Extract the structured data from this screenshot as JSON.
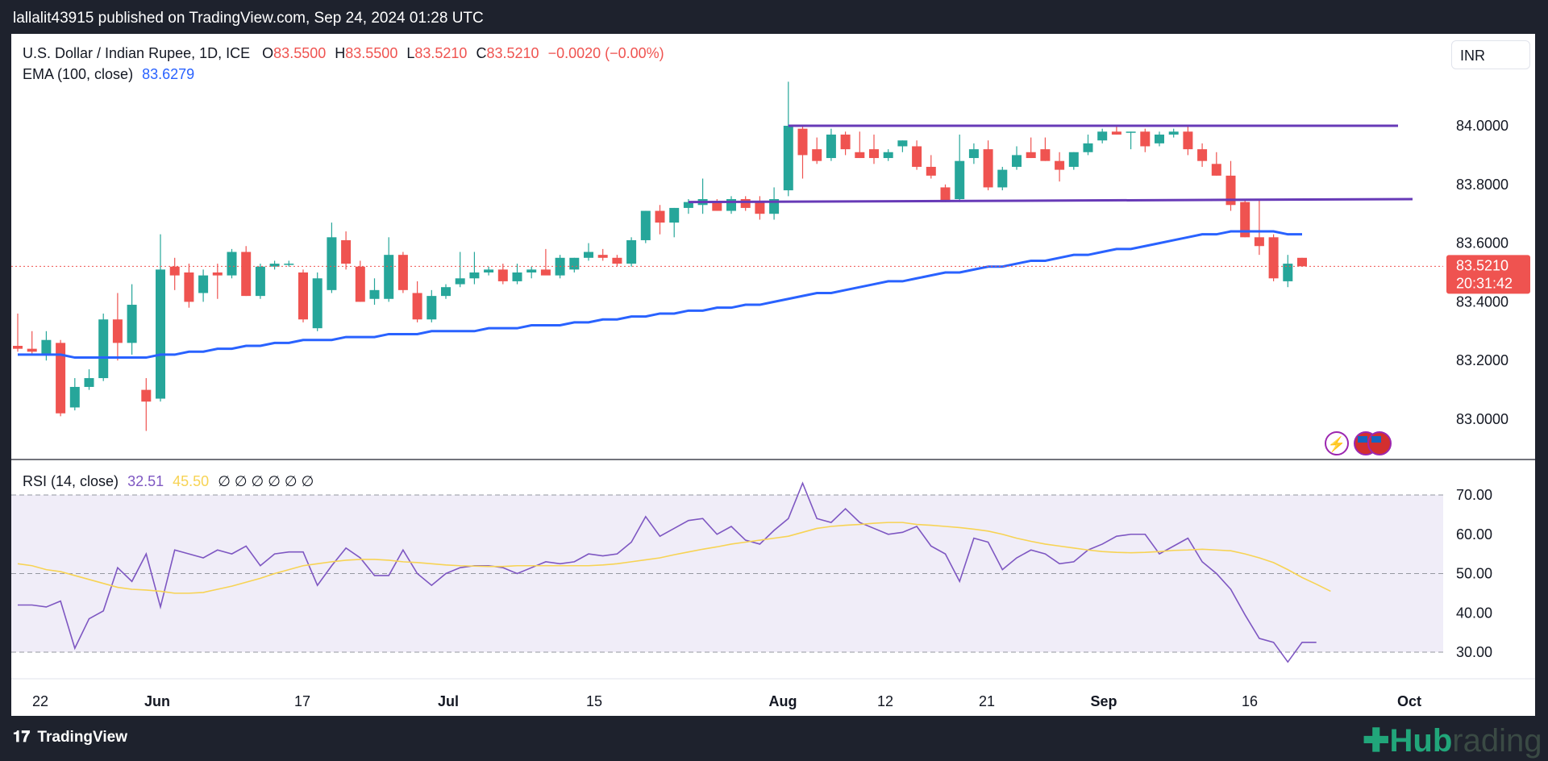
{
  "header": {
    "publish_text": "lallalit43915 published on TradingView.com, Sep 24, 2024 01:28 UTC"
  },
  "legend": {
    "symbol": "U.S. Dollar / Indian Rupee, 1D, ICE",
    "o_label": "O",
    "o_value": "83.5500",
    "h_label": "H",
    "h_value": "83.5500",
    "l_label": "L",
    "l_value": "83.5210",
    "c_label": "C",
    "c_value": "83.5210",
    "change": "−0.0020 (−0.00%)",
    "ema_label": "EMA (100, close)",
    "ema_value": "83.6279",
    "rsi_label": "RSI (14, close)",
    "rsi_value": "32.51",
    "rsi_ma_value": "45.50",
    "rsi_empty": "∅ ∅ ∅ ∅ ∅ ∅"
  },
  "currency_button": "INR",
  "price_tag": {
    "price": "83.5210",
    "countdown": "20:31:42"
  },
  "footer": {
    "brand": "TradingView",
    "watermark_a": "Hub",
    "watermark_b": "rading"
  },
  "colors": {
    "up": "#26a69a",
    "down": "#ef5350",
    "ema": "#2962ff",
    "channel": "#673ab7",
    "rsi": "#7e57c2",
    "rsi_ma": "#f7d354",
    "rsi_band": "#f0edf8"
  },
  "chart_data": [
    {
      "type": "candlestick",
      "title": "U.S. Dollar / Indian Rupee, 1D, ICE",
      "x_tick_labels": [
        "22",
        "Jun",
        "17",
        "Jul",
        "15",
        "Aug",
        "12",
        "21",
        "Sep",
        "16",
        "Oct"
      ],
      "y_tick_labels": [
        "84.0000",
        "83.8000",
        "83.6000",
        "83.4000",
        "83.2000",
        "83.0000"
      ],
      "ylim": [
        82.93,
        84.2
      ],
      "last_price": 83.521,
      "candles": [
        {
          "o": 83.25,
          "h": 83.36,
          "l": 83.23,
          "c": 83.24
        },
        {
          "o": 83.24,
          "h": 83.3,
          "l": 83.22,
          "c": 83.23
        },
        {
          "o": 83.22,
          "h": 83.3,
          "l": 83.2,
          "c": 83.27
        },
        {
          "o": 83.26,
          "h": 83.27,
          "l": 83.01,
          "c": 83.02
        },
        {
          "o": 83.04,
          "h": 83.14,
          "l": 83.03,
          "c": 83.11
        },
        {
          "o": 83.11,
          "h": 83.17,
          "l": 83.1,
          "c": 83.14
        },
        {
          "o": 83.14,
          "h": 83.36,
          "l": 83.13,
          "c": 83.34
        },
        {
          "o": 83.34,
          "h": 83.43,
          "l": 83.2,
          "c": 83.26
        },
        {
          "o": 83.26,
          "h": 83.46,
          "l": 83.22,
          "c": 83.39
        },
        {
          "o": 83.1,
          "h": 83.14,
          "l": 82.96,
          "c": 83.06
        },
        {
          "o": 83.07,
          "h": 83.63,
          "l": 83.06,
          "c": 83.51
        },
        {
          "o": 83.52,
          "h": 83.55,
          "l": 83.44,
          "c": 83.49
        },
        {
          "o": 83.5,
          "h": 83.53,
          "l": 83.38,
          "c": 83.4
        },
        {
          "o": 83.43,
          "h": 83.51,
          "l": 83.4,
          "c": 83.49
        },
        {
          "o": 83.5,
          "h": 83.53,
          "l": 83.41,
          "c": 83.49
        },
        {
          "o": 83.49,
          "h": 83.58,
          "l": 83.48,
          "c": 83.57
        },
        {
          "o": 83.57,
          "h": 83.59,
          "l": 83.42,
          "c": 83.42
        },
        {
          "o": 83.42,
          "h": 83.53,
          "l": 83.41,
          "c": 83.52
        },
        {
          "o": 83.52,
          "h": 83.54,
          "l": 83.51,
          "c": 83.53
        },
        {
          "o": 83.53,
          "h": 83.54,
          "l": 83.52,
          "c": 83.53
        },
        {
          "o": 83.5,
          "h": 83.51,
          "l": 83.33,
          "c": 83.34
        },
        {
          "o": 83.31,
          "h": 83.5,
          "l": 83.3,
          "c": 83.48
        },
        {
          "o": 83.44,
          "h": 83.67,
          "l": 83.43,
          "c": 83.62
        },
        {
          "o": 83.61,
          "h": 83.64,
          "l": 83.51,
          "c": 83.53
        },
        {
          "o": 83.52,
          "h": 83.54,
          "l": 83.4,
          "c": 83.4
        },
        {
          "o": 83.41,
          "h": 83.48,
          "l": 83.39,
          "c": 83.44
        },
        {
          "o": 83.41,
          "h": 83.62,
          "l": 83.4,
          "c": 83.56
        },
        {
          "o": 83.56,
          "h": 83.57,
          "l": 83.43,
          "c": 83.44
        },
        {
          "o": 83.43,
          "h": 83.47,
          "l": 83.33,
          "c": 83.34
        },
        {
          "o": 83.34,
          "h": 83.44,
          "l": 83.33,
          "c": 83.42
        },
        {
          "o": 83.42,
          "h": 83.46,
          "l": 83.41,
          "c": 83.45
        },
        {
          "o": 83.46,
          "h": 83.57,
          "l": 83.45,
          "c": 83.48
        },
        {
          "o": 83.48,
          "h": 83.57,
          "l": 83.46,
          "c": 83.5
        },
        {
          "o": 83.5,
          "h": 83.52,
          "l": 83.49,
          "c": 83.51
        },
        {
          "o": 83.51,
          "h": 83.53,
          "l": 83.46,
          "c": 83.47
        },
        {
          "o": 83.47,
          "h": 83.53,
          "l": 83.46,
          "c": 83.5
        },
        {
          "o": 83.5,
          "h": 83.52,
          "l": 83.48,
          "c": 83.51
        },
        {
          "o": 83.51,
          "h": 83.58,
          "l": 83.5,
          "c": 83.49
        },
        {
          "o": 83.49,
          "h": 83.56,
          "l": 83.48,
          "c": 83.55
        },
        {
          "o": 83.51,
          "h": 83.55,
          "l": 83.5,
          "c": 83.55
        },
        {
          "o": 83.55,
          "h": 83.6,
          "l": 83.54,
          "c": 83.57
        },
        {
          "o": 83.56,
          "h": 83.58,
          "l": 83.54,
          "c": 83.55
        },
        {
          "o": 83.55,
          "h": 83.56,
          "l": 83.52,
          "c": 83.53
        },
        {
          "o": 83.53,
          "h": 83.62,
          "l": 83.52,
          "c": 83.61
        },
        {
          "o": 83.61,
          "h": 83.71,
          "l": 83.6,
          "c": 83.71
        },
        {
          "o": 83.71,
          "h": 83.73,
          "l": 83.63,
          "c": 83.67
        },
        {
          "o": 83.67,
          "h": 83.72,
          "l": 83.62,
          "c": 83.72
        },
        {
          "o": 83.72,
          "h": 83.75,
          "l": 83.7,
          "c": 83.74
        },
        {
          "o": 83.73,
          "h": 83.82,
          "l": 83.7,
          "c": 83.75
        },
        {
          "o": 83.74,
          "h": 83.75,
          "l": 83.71,
          "c": 83.71
        },
        {
          "o": 83.71,
          "h": 83.76,
          "l": 83.7,
          "c": 83.75
        },
        {
          "o": 83.75,
          "h": 83.76,
          "l": 83.71,
          "c": 83.72
        },
        {
          "o": 83.74,
          "h": 83.76,
          "l": 83.68,
          "c": 83.7
        },
        {
          "o": 83.7,
          "h": 83.79,
          "l": 83.68,
          "c": 83.75
        },
        {
          "o": 83.78,
          "h": 84.15,
          "l": 83.76,
          "c": 84.0
        },
        {
          "o": 83.99,
          "h": 84.0,
          "l": 83.82,
          "c": 83.9
        },
        {
          "o": 83.92,
          "h": 83.96,
          "l": 83.87,
          "c": 83.88
        },
        {
          "o": 83.89,
          "h": 83.99,
          "l": 83.88,
          "c": 83.97
        },
        {
          "o": 83.97,
          "h": 83.98,
          "l": 83.9,
          "c": 83.92
        },
        {
          "o": 83.91,
          "h": 83.98,
          "l": 83.89,
          "c": 83.89
        },
        {
          "o": 83.92,
          "h": 83.97,
          "l": 83.87,
          "c": 83.89
        },
        {
          "o": 83.89,
          "h": 83.92,
          "l": 83.88,
          "c": 83.91
        },
        {
          "o": 83.93,
          "h": 83.95,
          "l": 83.91,
          "c": 83.95
        },
        {
          "o": 83.93,
          "h": 83.95,
          "l": 83.85,
          "c": 83.86
        },
        {
          "o": 83.86,
          "h": 83.9,
          "l": 83.82,
          "c": 83.83
        },
        {
          "o": 83.79,
          "h": 83.8,
          "l": 83.74,
          "c": 83.74
        },
        {
          "o": 83.75,
          "h": 83.97,
          "l": 83.74,
          "c": 83.88
        },
        {
          "o": 83.89,
          "h": 83.94,
          "l": 83.87,
          "c": 83.92
        },
        {
          "o": 83.92,
          "h": 83.95,
          "l": 83.78,
          "c": 83.79
        },
        {
          "o": 83.79,
          "h": 83.86,
          "l": 83.78,
          "c": 83.85
        },
        {
          "o": 83.86,
          "h": 83.93,
          "l": 83.85,
          "c": 83.9
        },
        {
          "o": 83.91,
          "h": 83.96,
          "l": 83.89,
          "c": 83.89
        },
        {
          "o": 83.92,
          "h": 83.96,
          "l": 83.88,
          "c": 83.88
        },
        {
          "o": 83.88,
          "h": 83.91,
          "l": 83.81,
          "c": 83.85
        },
        {
          "o": 83.86,
          "h": 83.91,
          "l": 83.85,
          "c": 83.91
        },
        {
          "o": 83.91,
          "h": 83.97,
          "l": 83.9,
          "c": 83.94
        },
        {
          "o": 83.95,
          "h": 83.99,
          "l": 83.94,
          "c": 83.98
        },
        {
          "o": 83.98,
          "h": 84.0,
          "l": 83.97,
          "c": 83.97
        },
        {
          "o": 83.98,
          "h": 83.98,
          "l": 83.92,
          "c": 83.98
        },
        {
          "o": 83.98,
          "h": 83.99,
          "l": 83.91,
          "c": 83.93
        },
        {
          "o": 83.94,
          "h": 83.98,
          "l": 83.93,
          "c": 83.97
        },
        {
          "o": 83.97,
          "h": 83.99,
          "l": 83.96,
          "c": 83.98
        },
        {
          "o": 83.98,
          "h": 84.0,
          "l": 83.9,
          "c": 83.92
        },
        {
          "o": 83.92,
          "h": 83.94,
          "l": 83.86,
          "c": 83.88
        },
        {
          "o": 83.87,
          "h": 83.91,
          "l": 83.83,
          "c": 83.83
        },
        {
          "o": 83.83,
          "h": 83.88,
          "l": 83.71,
          "c": 83.73
        },
        {
          "o": 83.74,
          "h": 83.75,
          "l": 83.62,
          "c": 83.62
        },
        {
          "o": 83.62,
          "h": 83.75,
          "l": 83.56,
          "c": 83.59
        },
        {
          "o": 83.62,
          "h": 83.63,
          "l": 83.47,
          "c": 83.48
        },
        {
          "o": 83.47,
          "h": 83.56,
          "l": 83.45,
          "c": 83.53
        },
        {
          "o": 83.55,
          "h": 83.55,
          "l": 83.52,
          "c": 83.521
        }
      ],
      "ema_100": [
        83.22,
        83.22,
        83.22,
        83.22,
        83.21,
        83.21,
        83.21,
        83.21,
        83.21,
        83.21,
        83.22,
        83.22,
        83.23,
        83.23,
        83.24,
        83.24,
        83.25,
        83.25,
        83.26,
        83.26,
        83.27,
        83.27,
        83.27,
        83.28,
        83.28,
        83.28,
        83.29,
        83.29,
        83.29,
        83.3,
        83.3,
        83.3,
        83.3,
        83.31,
        83.31,
        83.31,
        83.32,
        83.32,
        83.32,
        83.33,
        83.33,
        83.34,
        83.34,
        83.35,
        83.35,
        83.36,
        83.36,
        83.37,
        83.37,
        83.38,
        83.38,
        83.39,
        83.39,
        83.4,
        83.41,
        83.42,
        83.43,
        83.43,
        83.44,
        83.45,
        83.46,
        83.47,
        83.47,
        83.48,
        83.49,
        83.5,
        83.5,
        83.51,
        83.52,
        83.52,
        83.53,
        83.54,
        83.54,
        83.55,
        83.56,
        83.56,
        83.57,
        83.58,
        83.58,
        83.59,
        83.6,
        83.61,
        83.62,
        83.63,
        83.63,
        83.64,
        83.64,
        83.64,
        83.64,
        83.63,
        83.63
      ]
    },
    {
      "type": "line",
      "title": "RSI (14, close)",
      "y_tick_labels": [
        "70.00",
        "60.00",
        "50.00",
        "40.00",
        "30.00"
      ],
      "ylim": [
        24,
        74
      ],
      "series": [
        {
          "name": "RSI",
          "values": [
            42,
            42,
            41.5,
            43,
            31,
            38.5,
            40.5,
            51.5,
            48,
            55,
            41.5,
            56,
            55,
            54,
            56,
            55,
            57,
            52,
            55,
            55.5,
            55.5,
            47,
            52,
            56.5,
            54,
            49.5,
            49.5,
            56,
            50,
            47,
            50,
            51.5,
            52,
            52,
            51.5,
            50,
            51.5,
            53,
            52.5,
            53,
            55,
            54.5,
            55,
            58,
            64.5,
            59.5,
            61.5,
            63.5,
            64,
            60,
            62,
            58.5,
            57.5,
            61,
            64,
            73,
            64,
            63,
            66.5,
            63,
            61.5,
            60,
            60.5,
            62,
            57,
            55,
            48,
            59,
            58,
            51,
            54,
            56,
            55,
            52.5,
            53,
            56,
            57.5,
            59.5,
            60,
            60,
            55,
            57,
            59,
            53,
            50,
            46,
            39.5,
            33.5,
            32.5,
            27.5,
            32.5,
            32.51
          ]
        },
        {
          "name": "RSI-based MA",
          "values": [
            52.5,
            52,
            51,
            50.5,
            49.5,
            48.5,
            47.5,
            46.5,
            46,
            45.8,
            45.5,
            45,
            45,
            45.2,
            46,
            46.8,
            47.8,
            48.8,
            50,
            51,
            52,
            52.5,
            53,
            53.4,
            53.6,
            53.6,
            53.4,
            53,
            52.8,
            52.5,
            52.2,
            52,
            51.9,
            51.8,
            51.8,
            52,
            52,
            52,
            52,
            52,
            52,
            52.2,
            52.5,
            53,
            53.5,
            54,
            54.8,
            55.5,
            56.2,
            56.8,
            57.5,
            58,
            58.5,
            59,
            59.5,
            60.5,
            61.5,
            62,
            62.3,
            62.5,
            62.8,
            63,
            63,
            62.5,
            62.3,
            62,
            61.7,
            61.3,
            60.8,
            60,
            59,
            58.2,
            57.5,
            57,
            56.5,
            56,
            55.6,
            55.4,
            55.3,
            55.4,
            55.6,
            55.9,
            56,
            56.2,
            56,
            55.8,
            55,
            54,
            52.8,
            51,
            49,
            47.3,
            45.5
          ]
        }
      ]
    }
  ]
}
